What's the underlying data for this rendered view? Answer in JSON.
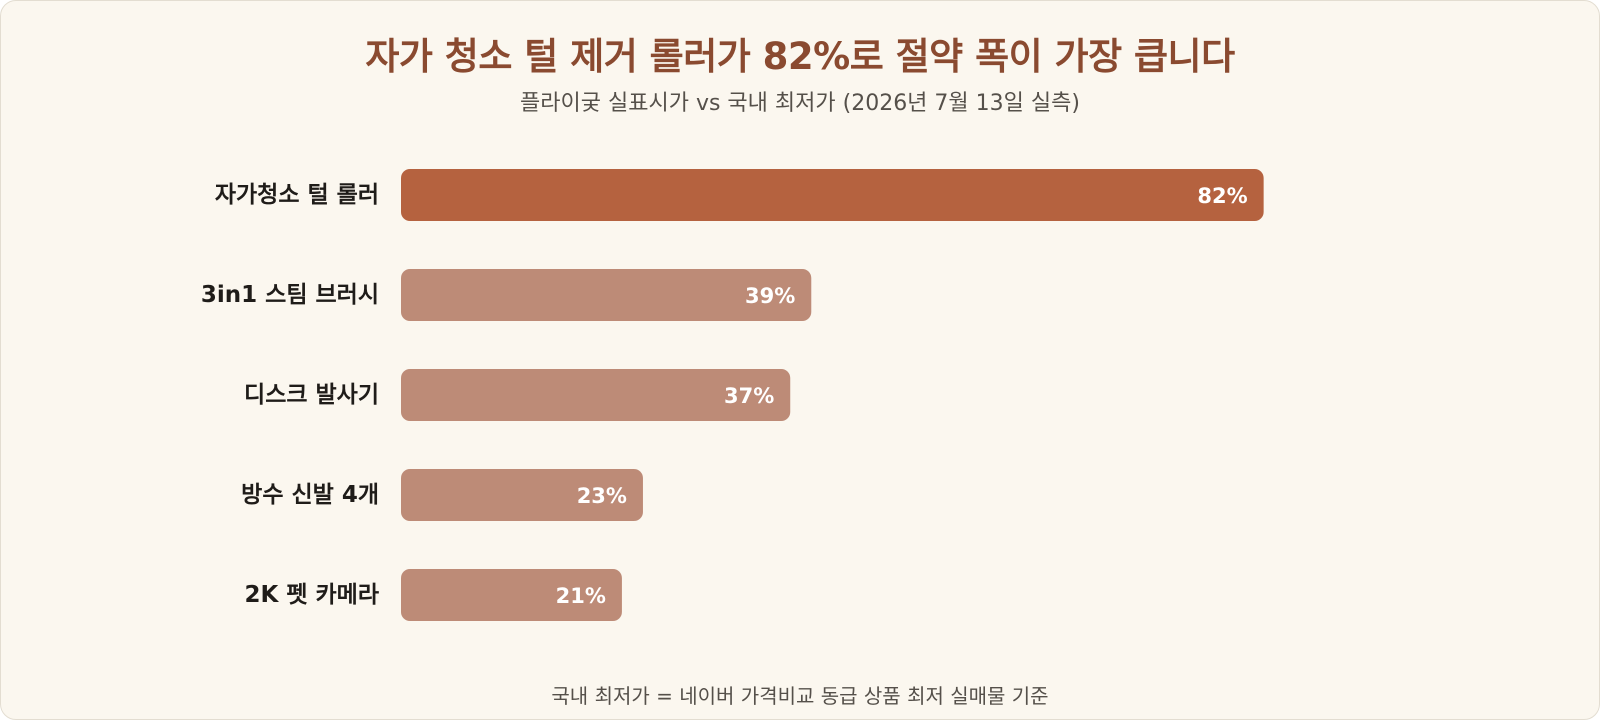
{
  "title": "자가 청소 털 제거 롤러가 82%로 절약 폭이 가장 큽니다",
  "subtitle": "플라이궂 실표시가 vs 국내 최저가 (2026년 7월 13일 실측)",
  "footnote": "국내 최저가 = 네이버 가격비교 동급 상품 최저 실매물 기준",
  "colors": {
    "background": "#fbf7ef",
    "title": "#8a4a30",
    "highlight_bar": "#b5623f",
    "bar": "#bd8b77",
    "value_text": "#ffffff"
  },
  "chart_data": {
    "type": "bar",
    "orientation": "horizontal",
    "categories": [
      "자가청소 털 롤러",
      "3in1 스팀 브러시",
      "디스크 발사기",
      "방수 신발 4개",
      "2K 펫 카메라"
    ],
    "values": [
      82,
      39,
      37,
      23,
      21
    ],
    "value_labels": [
      "82%",
      "39%",
      "37%",
      "23%",
      "21%"
    ],
    "highlight_index": 0,
    "unit": "%",
    "xlim": [
      0,
      100
    ],
    "grid": false,
    "legend": "none"
  }
}
